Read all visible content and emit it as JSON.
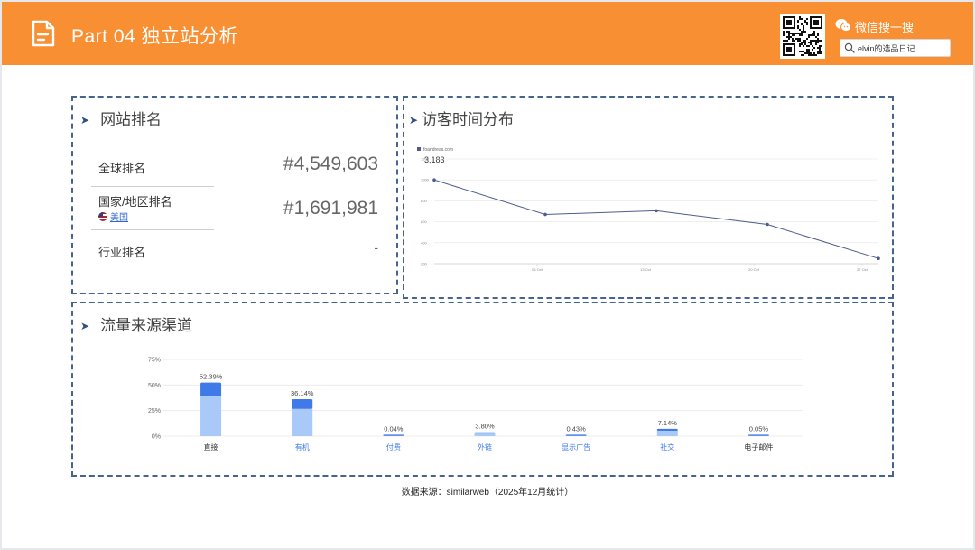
{
  "header": {
    "title": "Part 04 独立站分析",
    "wechat_label": "微信搜一搜",
    "search_text": "elvin的选品日记"
  },
  "ranking": {
    "title": "网站排名",
    "global_label": "全球排名",
    "global_value": "#4,549,603",
    "country_label": "国家/地区排名",
    "country_name": "美国",
    "country_value": "#1,691,981",
    "industry_label": "行业排名",
    "industry_value": "-"
  },
  "visits": {
    "title": "访客时间分布",
    "legend": "foandreas.com",
    "value": "3,183"
  },
  "traffic": {
    "title": "流量来源渠道"
  },
  "footer": {
    "source": "数据来源：similarweb（2025年12月统计）"
  },
  "chart_data": [
    {
      "type": "line",
      "title": "访客时间分布",
      "series": [
        {
          "name": "foandreas.com",
          "values": [
            1000,
            670,
            705,
            575,
            250
          ]
        }
      ],
      "x_ticks": [
        "06 Oct",
        "13 Oct",
        "20 Oct",
        "27 Oct"
      ],
      "y_ticks": [
        200,
        400,
        600,
        800,
        1000,
        1200
      ],
      "ylim": [
        200,
        1200
      ]
    },
    {
      "type": "bar",
      "title": "流量来源渠道",
      "categories": [
        "直接",
        "有机",
        "付费",
        "外链",
        "显示广告",
        "社交",
        "电子邮件"
      ],
      "values": [
        52.39,
        36.14,
        0.04,
        3.8,
        0.43,
        7.14,
        0.05
      ],
      "labels": [
        "52.39%",
        "36.14%",
        "0.04%",
        "3.80%",
        "0.43%",
        "7.14%",
        "0.05%"
      ],
      "y_ticks": [
        "0%",
        "25%",
        "50%",
        "75%"
      ],
      "ylim": [
        0,
        75
      ],
      "colors": {
        "top": "#3f7ae8",
        "bottom": "#a9c9f8"
      }
    }
  ],
  "colors": {
    "header": "#f98f33",
    "panel_border": "#46658c",
    "line": "#4c5c8c",
    "link": "#3366cc"
  }
}
